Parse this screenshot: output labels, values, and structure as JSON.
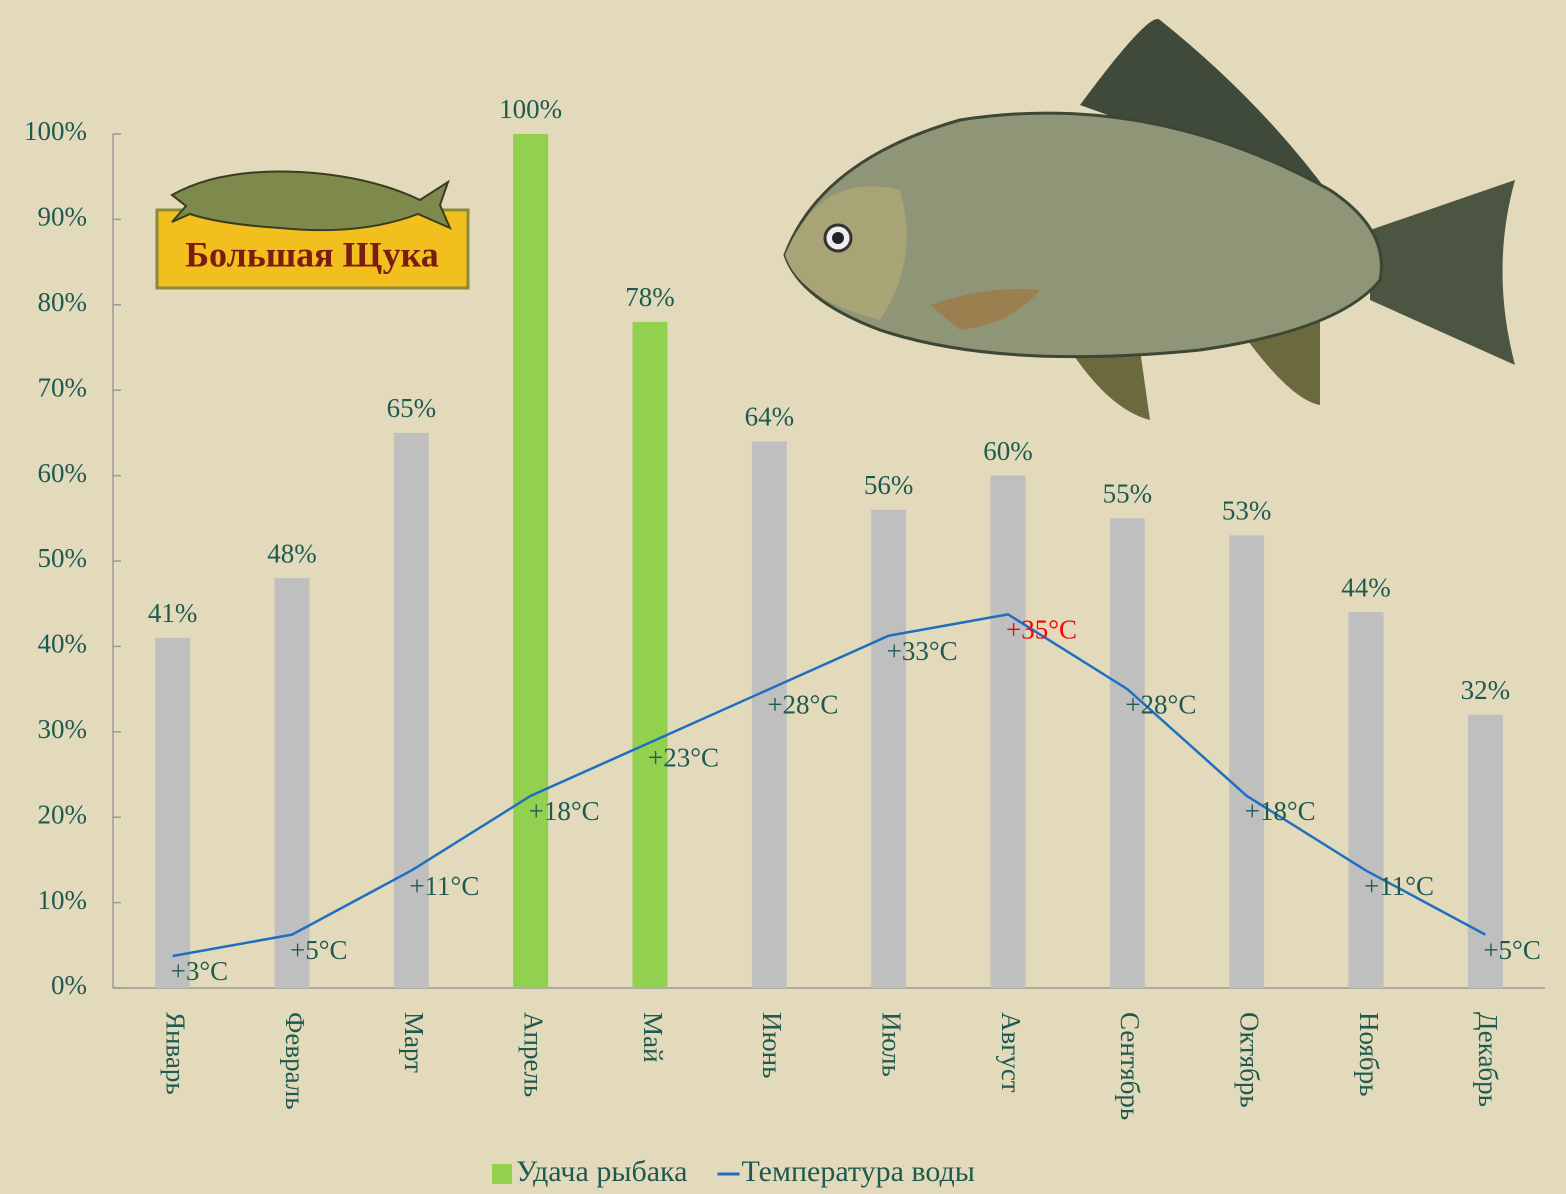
{
  "logo": {
    "text": "Большая Щука"
  },
  "chart_data": {
    "type": "bar",
    "categories": [
      "Январь",
      "Февраль",
      "Март",
      "Апрель",
      "Май",
      "Июнь",
      "Июль",
      "Август",
      "Сентябрь",
      "Октябрь",
      "Ноябрь",
      "Декабрь"
    ],
    "series": [
      {
        "name": "Удача рыбака",
        "type": "bar",
        "color": "#92d050",
        "colors": [
          "#bfbfbf",
          "#bfbfbf",
          "#bfbfbf",
          "#92d050",
          "#92d050",
          "#bfbfbf",
          "#bfbfbf",
          "#bfbfbf",
          "#bfbfbf",
          "#bfbfbf",
          "#bfbfbf",
          "#bfbfbf"
        ],
        "values": [
          41,
          48,
          65,
          100,
          78,
          64,
          56,
          60,
          55,
          53,
          44,
          32
        ],
        "value_labels": [
          "41%",
          "48%",
          "65%",
          "100%",
          "78%",
          "64%",
          "56%",
          "60%",
          "55%",
          "53%",
          "44%",
          "32%"
        ]
      },
      {
        "name": "Температура воды",
        "type": "line",
        "axis": "y2",
        "color": "#1f6fc0",
        "values": [
          3,
          5,
          11,
          18,
          23,
          28,
          33,
          35,
          28,
          18,
          11,
          5
        ],
        "value_labels": [
          "+3°C",
          "+5°C",
          "+11°C",
          "+18°C",
          "+23°C",
          "+28°C",
          "+33°C",
          "+35°C",
          "+28°C",
          "+18°C",
          "+11°C",
          "+5°C"
        ],
        "value_label_colors": [
          "#1f5a50",
          "#1f5a50",
          "#1f5a50",
          "#1f5a50",
          "#1f5a50",
          "#1f5a50",
          "#1f5a50",
          "#ff0000",
          "#1f5a50",
          "#1f5a50",
          "#1f5a50",
          "#1f5a50"
        ]
      }
    ],
    "ylim": [
      0,
      100
    ],
    "yticks": [
      {
        "value": 0,
        "label": "0%"
      },
      {
        "value": 10,
        "label": "10%"
      },
      {
        "value": 20,
        "label": "20%"
      },
      {
        "value": 30,
        "label": "30%"
      },
      {
        "value": 40,
        "label": "40%"
      },
      {
        "value": 50,
        "label": "50%"
      },
      {
        "value": 60,
        "label": "60%"
      },
      {
        "value": 70,
        "label": "70%"
      },
      {
        "value": 80,
        "label": "80%"
      },
      {
        "value": 90,
        "label": "90%"
      },
      {
        "value": 100,
        "label": "100%"
      }
    ],
    "y2lim": [
      0,
      80
    ],
    "legend": "bottom"
  }
}
